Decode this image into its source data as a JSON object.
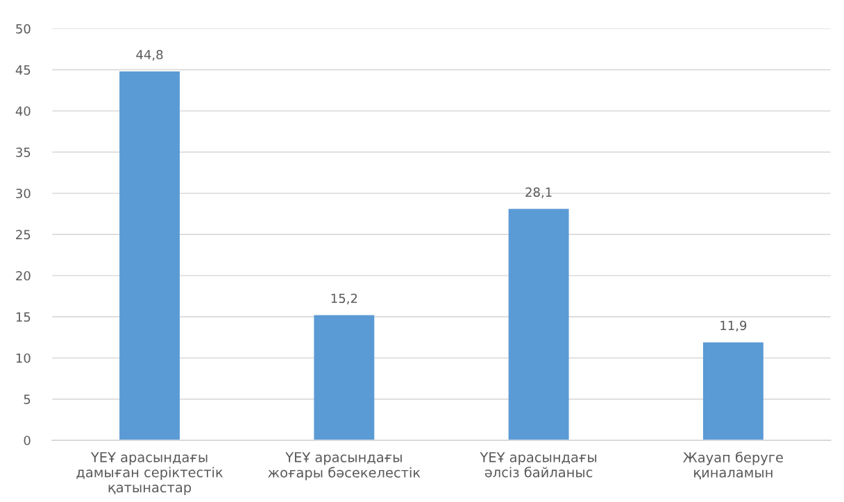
{
  "chart_data": {
    "type": "bar",
    "categories": [
      "ҮЕҰ арасындағы\nдамыған серіктестік\nқатынастар",
      "ҮЕҰ арасындағы\nжоғары бәсекелестік",
      "ҮЕҰ арасындағы\nәлсіз байланыс",
      "Жауап беруге\nқиналамын"
    ],
    "values": [
      44.8,
      15.2,
      28.1,
      11.9
    ],
    "color": "#5b9bd5",
    "value_labels": [
      "44,8",
      "15,2",
      "28,1",
      "11,9"
    ],
    "ylim": [
      0,
      50
    ],
    "yticks": [
      0,
      5,
      10,
      15,
      20,
      25,
      30,
      35,
      40,
      45,
      50
    ],
    "grid": "y",
    "legend": false
  }
}
